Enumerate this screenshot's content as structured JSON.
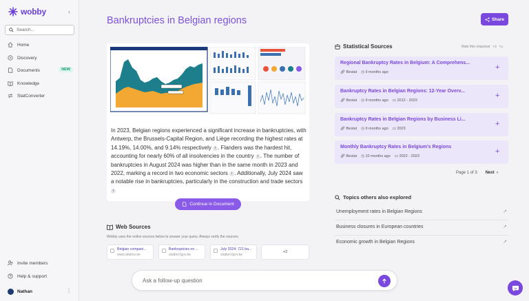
{
  "app": {
    "name": "wobby"
  },
  "sidebar": {
    "search_placeholder": "Search...",
    "items": [
      {
        "label": "Home",
        "icon": "home-icon"
      },
      {
        "label": "Discovery",
        "icon": "compass-icon"
      },
      {
        "label": "Documents",
        "icon": "document-icon",
        "badge": "NEW"
      },
      {
        "label": "Knowledge",
        "icon": "book-icon"
      },
      {
        "label": "StatConverter",
        "icon": "convert-icon"
      }
    ],
    "bottom_items": [
      {
        "label": "Invite members",
        "icon": "user-plus-icon"
      },
      {
        "label": "Help & support",
        "icon": "help-icon"
      }
    ],
    "user": {
      "name": "Nathan"
    }
  },
  "page": {
    "title": "Bankruptcies in Belgian regions",
    "share_label": "Share",
    "answer_parts": [
      "In 2023, Belgian regions experienced a significant increase in bankruptcies, with Antwerp, the Brussels-Capital Region, and Liège recording the highest rates at 14.19%, 14.00%, and 9.14% respectively",
      ". Flanders was the hardest hit, accounting for nearly 60% of all insolvencies in the country",
      ". The number of bankruptcies in August 2024 was higher than in the same month in 2023 and 2022, marking a record in two economic sectors",
      ". Additionally, July 2024 saw a notable rise in bankruptcies, particularly in the construction and trade sectors"
    ],
    "continue_label": "Continue in Document",
    "followup_placeholder": "Ask a follow-up question"
  },
  "web_sources": {
    "title": "Web Sources",
    "description": "Wobby uses the online sources below to answer your query. Always verify the sources.",
    "items": [
      {
        "title": "Belgian compani...",
        "domain": "www.afaires.be"
      },
      {
        "title": "Bankruptcies on ...",
        "domain": "statbel.fgov.be"
      },
      {
        "title": "July 2024: 721 ba...",
        "domain": "statbel.fgov.be"
      }
    ],
    "more_label": "+2"
  },
  "statistical_sources": {
    "title": "Statistical Sources",
    "rate_label": "Rate this response",
    "items": [
      {
        "title": "Regional Bankruptcy Rates in Belgium: A Comprehens...",
        "source": "Bestat",
        "age": "9 months ago",
        "period": ""
      },
      {
        "title": "Bankruptcy Rates in Belgian Regions: 12-Year Overv...",
        "source": "Bestat",
        "age": "9 months ago",
        "period": "2012 - 2023"
      },
      {
        "title": "Bankruptcy Rates in Belgian Regions by Business Li...",
        "source": "Bestat",
        "age": "9 months ago",
        "period": "2023"
      },
      {
        "title": "Monthly Bankruptcy Rates in Belgium's Regions",
        "source": "Bestat",
        "age": "10 months ago",
        "period": "2022 - 2023"
      }
    ],
    "pager": {
      "label": "Page 1 of 3",
      "next": "Next"
    }
  },
  "topics": {
    "title": "Topics others also explored",
    "items": [
      "Unemployment rates in Belgian Regions",
      "Business closures in European countries",
      "Economic growth in Belgian Regions"
    ]
  },
  "colors": {
    "accent": "#7a48de",
    "title": "#7c52d8",
    "source_card_bg": "#ece6fa"
  }
}
